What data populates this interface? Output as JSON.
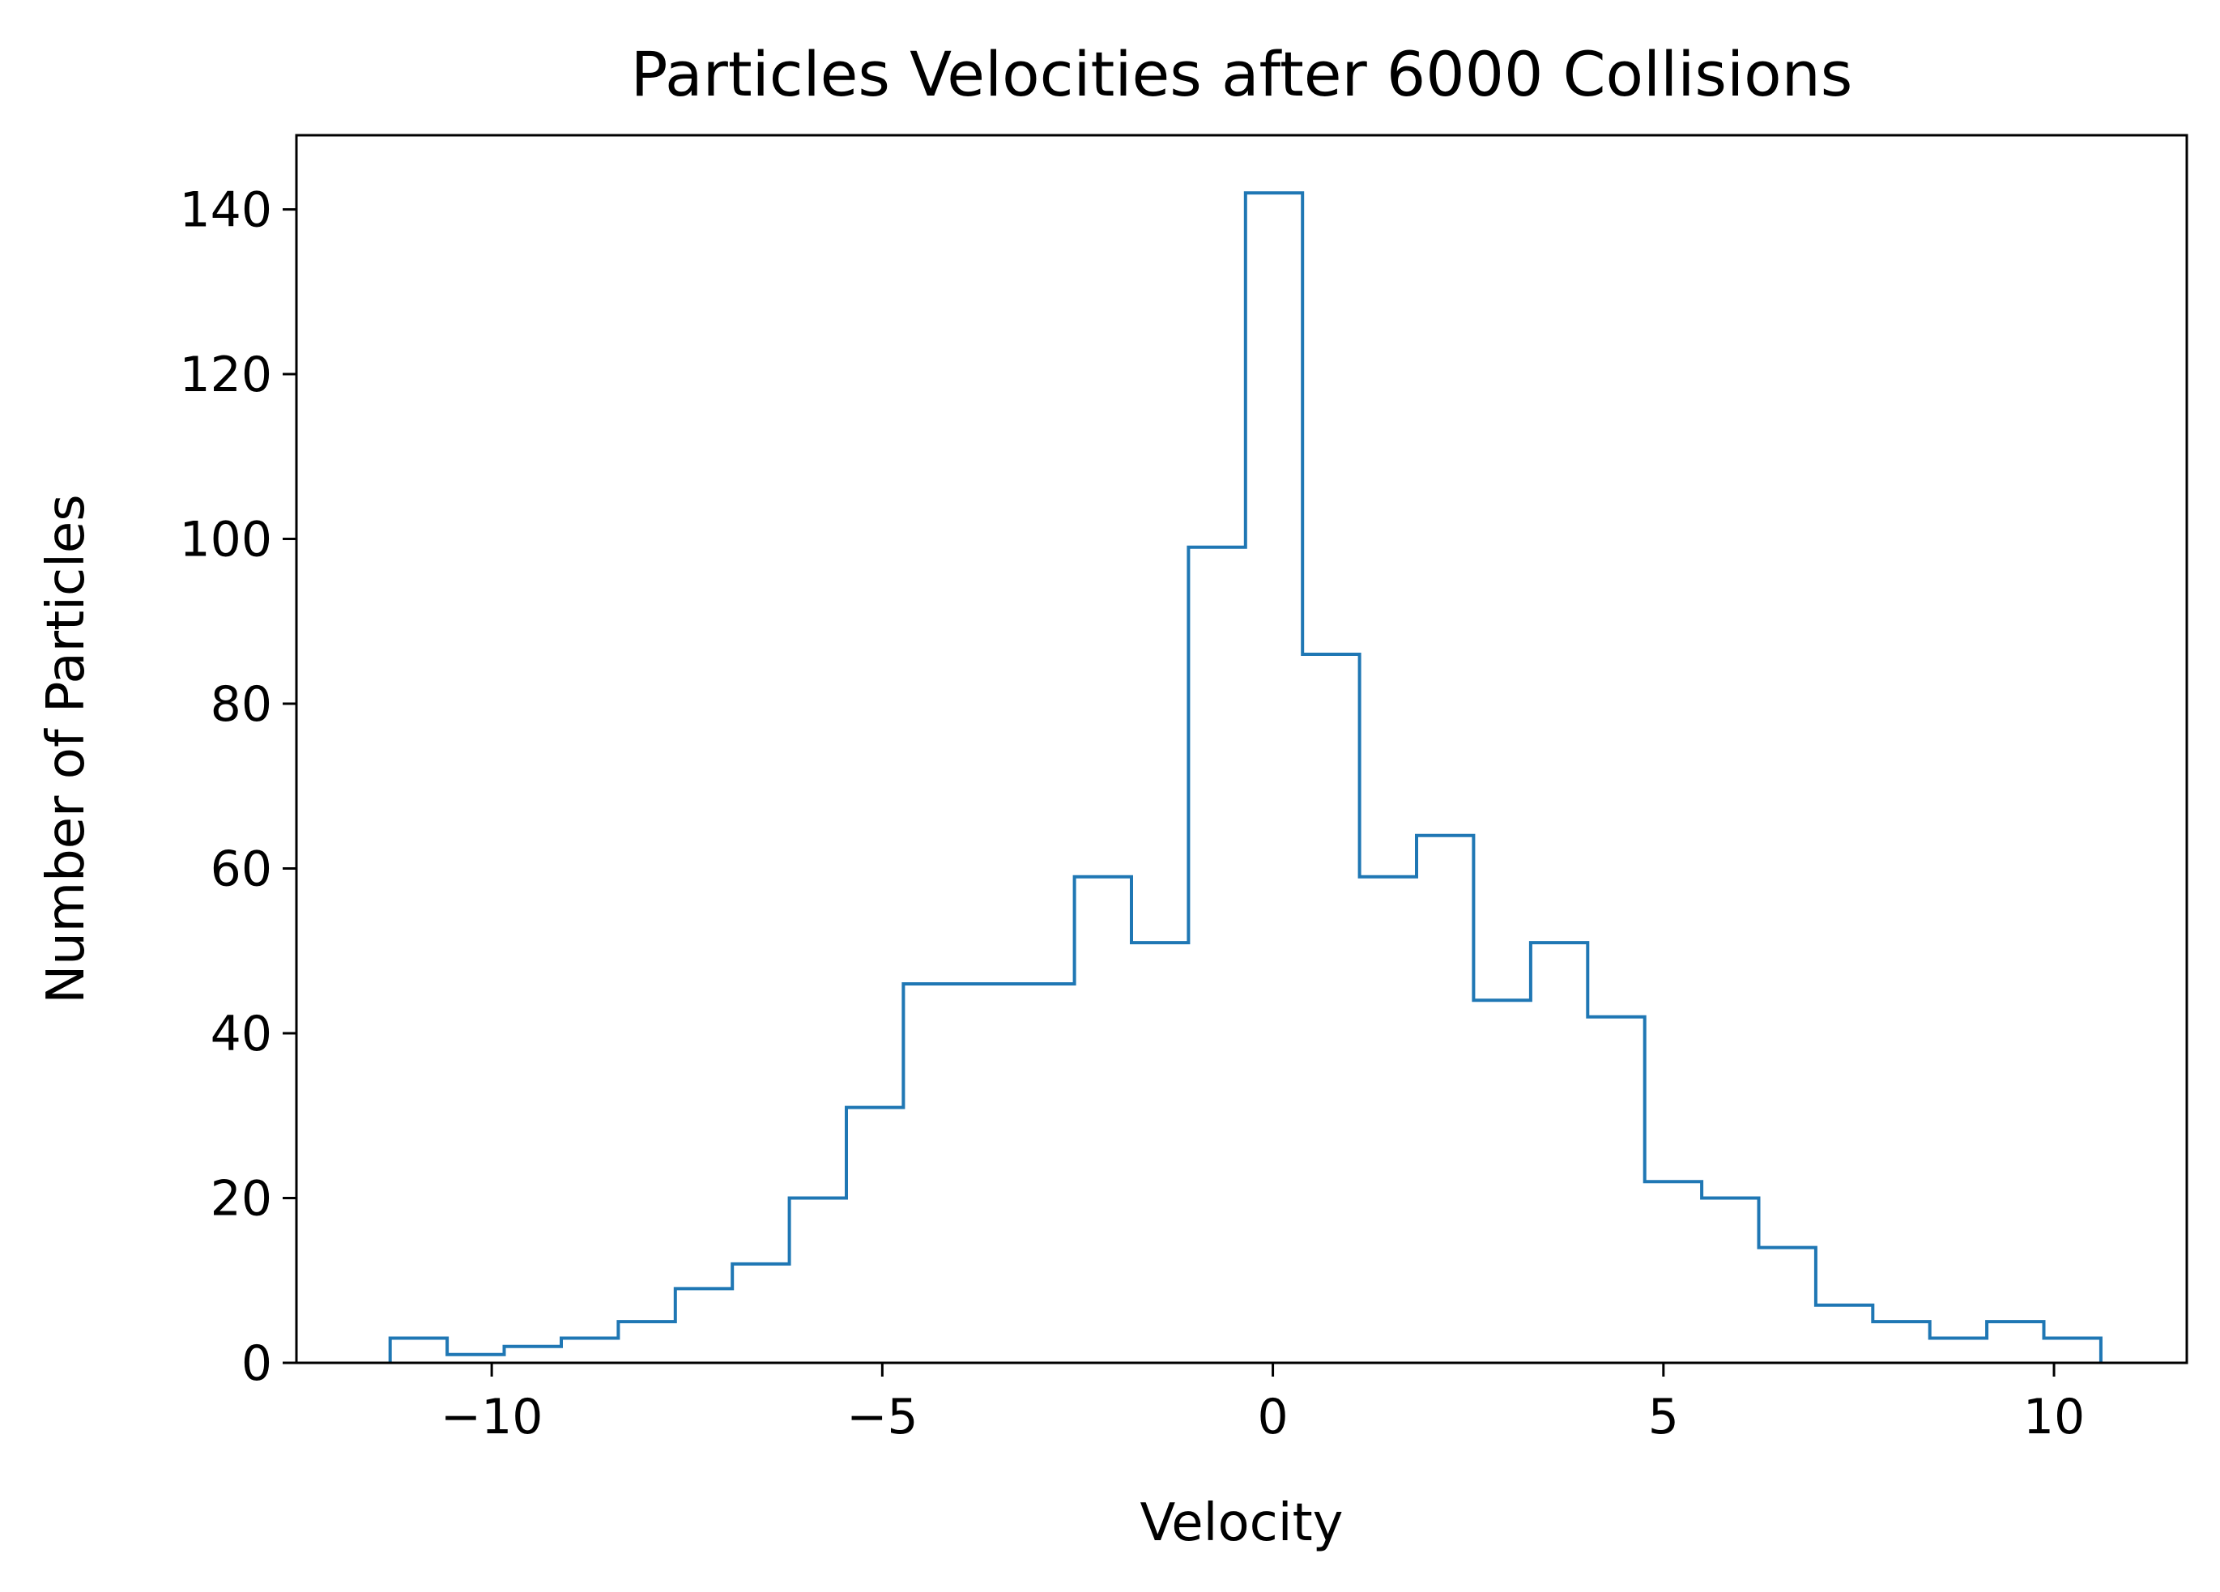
{
  "chart_data": {
    "type": "histogram",
    "title": "Particles Velocities after 6000 Collisions",
    "xlabel": "Velocity",
    "ylabel": "Number of Particles",
    "xlim": [
      -12.5,
      11.7
    ],
    "ylim": [
      0,
      149
    ],
    "x_ticks": [
      -10,
      -5,
      0,
      5,
      10
    ],
    "x_tick_labels": [
      "−10",
      "−5",
      "0",
      "5",
      "10"
    ],
    "y_ticks": [
      0,
      20,
      40,
      60,
      80,
      100,
      120,
      140
    ],
    "y_tick_labels": [
      "0",
      "20",
      "40",
      "60",
      "80",
      "100",
      "120",
      "140"
    ],
    "bin_edges": [
      -11.3,
      -10.57,
      -9.84,
      -9.11,
      -8.38,
      -7.65,
      -6.92,
      -6.19,
      -5.46,
      -4.73,
      -4.0,
      -3.27,
      -2.54,
      -1.81,
      -1.08,
      -0.35,
      0.38,
      1.11,
      1.84,
      2.57,
      3.3,
      4.03,
      4.76,
      5.49,
      6.22,
      6.95,
      7.68,
      8.41,
      9.14,
      9.87,
      10.6
    ],
    "counts": [
      3,
      1,
      2,
      3,
      5,
      9,
      12,
      20,
      31,
      46,
      46,
      46,
      59,
      51,
      99,
      142,
      86,
      59,
      64,
      44,
      51,
      42,
      22,
      20,
      14,
      7,
      5,
      3,
      5,
      3
    ],
    "histtype": "step",
    "color": "#1f77b4",
    "grid": false,
    "legend": "none"
  }
}
